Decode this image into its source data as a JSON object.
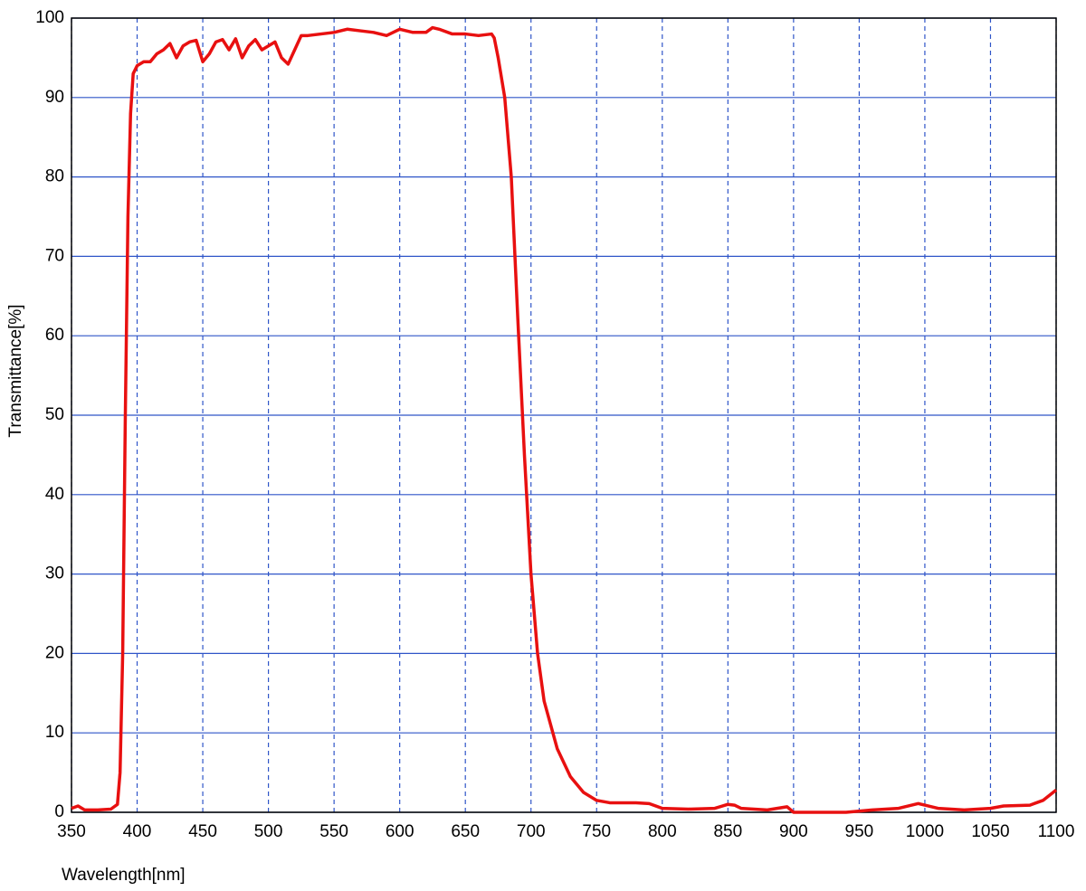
{
  "chart_data": {
    "type": "line",
    "x_label": "Wavelength[nm]",
    "y_label": "Transmittance[%]",
    "color": "#e81010",
    "grid": true,
    "xlim": [
      350,
      1100
    ],
    "xticks": [
      350,
      400,
      450,
      500,
      550,
      600,
      650,
      700,
      750,
      800,
      850,
      900,
      950,
      1000,
      1050,
      1100
    ],
    "ylim": [
      0,
      100
    ],
    "yticks": [
      0,
      10,
      20,
      30,
      40,
      50,
      60,
      70,
      80,
      90,
      100
    ],
    "x": [
      350,
      355,
      360,
      370,
      380,
      385,
      387,
      389,
      391,
      393,
      395,
      397,
      400,
      405,
      410,
      415,
      420,
      425,
      430,
      435,
      440,
      445,
      450,
      455,
      460,
      465,
      470,
      475,
      480,
      485,
      490,
      495,
      500,
      505,
      510,
      515,
      520,
      525,
      530,
      540,
      550,
      560,
      570,
      580,
      590,
      600,
      610,
      620,
      625,
      630,
      640,
      650,
      660,
      670,
      672,
      675,
      680,
      685,
      690,
      695,
      700,
      705,
      710,
      720,
      730,
      740,
      750,
      760,
      780,
      790,
      800,
      820,
      840,
      850,
      855,
      860,
      880,
      895,
      900,
      920,
      940,
      960,
      980,
      995,
      1000,
      1010,
      1030,
      1050,
      1060,
      1080,
      1090,
      1100
    ],
    "values": [
      0.5,
      0.8,
      0.3,
      0.3,
      0.4,
      1,
      5,
      20,
      50,
      75,
      88,
      93,
      94,
      94.5,
      94.5,
      95.5,
      96,
      96.8,
      95,
      96.5,
      97,
      97.2,
      94.5,
      95.5,
      97,
      97.3,
      96,
      97.4,
      95,
      96.5,
      97.3,
      96,
      96.5,
      97,
      95,
      94.2,
      96,
      97.8,
      97.8,
      98,
      98.2,
      98.6,
      98.4,
      98.2,
      97.8,
      98.6,
      98.2,
      98.2,
      98.8,
      98.6,
      98,
      98,
      97.8,
      98,
      97.5,
      95,
      90,
      80,
      62,
      45,
      30,
      20,
      14,
      8,
      4.5,
      2.5,
      1.5,
      1.2,
      1.2,
      1.1,
      0.5,
      0.4,
      0.5,
      1,
      0.9,
      0.5,
      0.3,
      0.7,
      0,
      0,
      0,
      0.3,
      0.5,
      1.1,
      0.9,
      0.5,
      0.3,
      0.5,
      0.8,
      0.9,
      1.5,
      2.8
    ]
  }
}
